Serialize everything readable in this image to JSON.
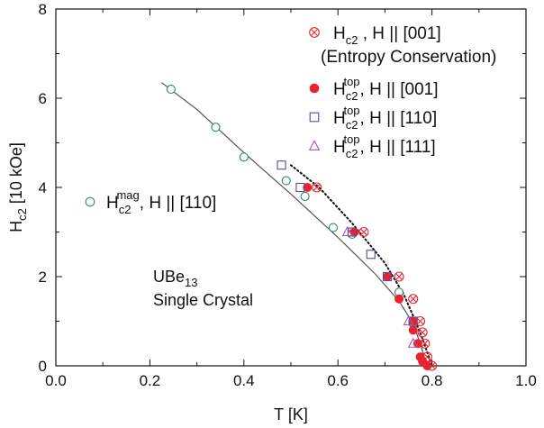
{
  "chart_data": {
    "type": "scatter",
    "xlabel": "T [K]",
    "ylabel": "H",
    "ylabel_sub": "c2",
    "ylabel_unit": "[10 kOe]",
    "xlim": [
      0.0,
      1.0
    ],
    "ylim": [
      0,
      8
    ],
    "x_ticks": [
      0.0,
      0.2,
      0.4,
      0.6,
      0.8,
      1.0
    ],
    "x_tick_labels": [
      "0.0",
      "0.2",
      "0.4",
      "0.6",
      "0.8",
      "1.0"
    ],
    "y_ticks": [
      0,
      2,
      4,
      6,
      8
    ],
    "y_tick_labels": [
      "0",
      "2",
      "4",
      "6",
      "8"
    ],
    "grid": false,
    "legend_position": "top-right",
    "annotation": {
      "line1": "UBe",
      "line1_sub": "13",
      "line2": "Single Crystal"
    },
    "series": [
      {
        "name": "Hc2^mag, H || [110]",
        "legend_main": "H",
        "legend_sub": "c2",
        "legend_sup": "mag",
        "legend_rest": ", H || [110]",
        "marker": "open-circle",
        "color": "#2e8b57",
        "points": [
          [
            0.245,
            6.2
          ],
          [
            0.34,
            5.35
          ],
          [
            0.4,
            4.68
          ],
          [
            0.49,
            4.15
          ],
          [
            0.53,
            3.8
          ],
          [
            0.59,
            3.1
          ],
          [
            0.63,
            2.95
          ],
          [
            0.73,
            1.65
          ],
          [
            0.76,
            0.95
          ]
        ]
      },
      {
        "name": "Hc2 , H || [001] (Entropy Conservation)",
        "legend_main": "H",
        "legend_sub": "c2",
        "legend_rest": " , H || [001]",
        "legend_line2": "(Entropy Conservation)",
        "marker": "circle-x",
        "color": "#e8232e",
        "points": [
          [
            0.555,
            4.0
          ],
          [
            0.655,
            3.0
          ],
          [
            0.73,
            2.0
          ],
          [
            0.76,
            1.5
          ],
          [
            0.775,
            1.0
          ],
          [
            0.78,
            0.75
          ],
          [
            0.785,
            0.5
          ],
          [
            0.79,
            0.2
          ],
          [
            0.8,
            0.0
          ]
        ]
      },
      {
        "name": "Hc2^top, H || [001]",
        "legend_main": "H",
        "legend_sub": "c2",
        "legend_sup": "top",
        "legend_rest": ", H || [001]",
        "marker": "filled-circle",
        "color": "#e8232e",
        "points": [
          [
            0.535,
            4.0
          ],
          [
            0.635,
            3.0
          ],
          [
            0.705,
            2.0
          ],
          [
            0.73,
            1.5
          ],
          [
            0.76,
            1.0
          ],
          [
            0.76,
            0.8
          ],
          [
            0.77,
            0.5
          ],
          [
            0.775,
            0.2
          ],
          [
            0.78,
            0.1
          ],
          [
            0.79,
            0.0
          ]
        ]
      },
      {
        "name": "Hc2^top, H || [110]",
        "legend_main": "H",
        "legend_sub": "c2",
        "legend_sup": "top",
        "legend_rest": ", H || [110]",
        "marker": "open-square",
        "color": "#5a4a9a",
        "points": [
          [
            0.48,
            4.5
          ],
          [
            0.52,
            4.0
          ],
          [
            0.63,
            3.0
          ],
          [
            0.67,
            2.5
          ],
          [
            0.705,
            2.0
          ],
          [
            0.76,
            1.0
          ]
        ]
      },
      {
        "name": "Hc2^top, H || [111]",
        "legend_main": "H",
        "legend_sub": "c2",
        "legend_sup": "top",
        "legend_rest": ", H || [111]",
        "marker": "open-triangle",
        "color": "#9b59b6",
        "points": [
          [
            0.62,
            3.0
          ],
          [
            0.75,
            1.0
          ],
          [
            0.76,
            0.5
          ]
        ]
      }
    ],
    "fit_lines": [
      {
        "style": "solid",
        "color": "#555555",
        "points": [
          [
            0.225,
            6.35
          ],
          [
            0.3,
            5.75
          ],
          [
            0.4,
            4.78
          ],
          [
            0.5,
            3.85
          ],
          [
            0.6,
            2.88
          ],
          [
            0.68,
            2.05
          ],
          [
            0.73,
            1.45
          ],
          [
            0.76,
            0.95
          ],
          [
            0.775,
            0.5
          ],
          [
            0.785,
            0.15
          ],
          [
            0.79,
            0.0
          ]
        ]
      },
      {
        "style": "dotted",
        "color": "#111111",
        "points": [
          [
            0.5,
            4.5
          ],
          [
            0.56,
            4.0
          ],
          [
            0.63,
            3.2
          ],
          [
            0.7,
            2.3
          ],
          [
            0.74,
            1.6
          ],
          [
            0.765,
            1.0
          ],
          [
            0.78,
            0.6
          ],
          [
            0.79,
            0.3
          ],
          [
            0.8,
            0.0
          ]
        ]
      }
    ]
  }
}
